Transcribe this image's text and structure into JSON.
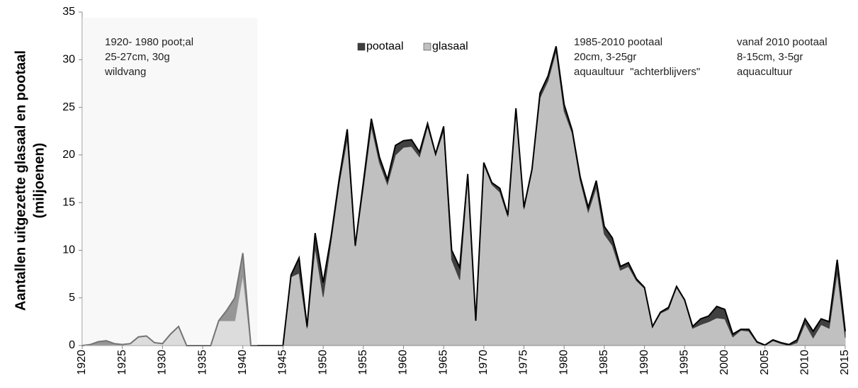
{
  "chart_data": {
    "type": "stacked-area",
    "ylabel": [
      "Aantallen uitgezette glasaal en pootaal",
      "(miljoenen)"
    ],
    "x": [
      1920,
      1921,
      1922,
      1923,
      1924,
      1925,
      1926,
      1927,
      1928,
      1929,
      1930,
      1931,
      1932,
      1933,
      1934,
      1935,
      1936,
      1937,
      1938,
      1939,
      1940,
      1941,
      1942,
      1943,
      1944,
      1945,
      1946,
      1947,
      1948,
      1949,
      1950,
      1951,
      1952,
      1953,
      1954,
      1955,
      1956,
      1957,
      1958,
      1959,
      1960,
      1961,
      1962,
      1963,
      1964,
      1965,
      1966,
      1967,
      1968,
      1969,
      1970,
      1971,
      1972,
      1973,
      1974,
      1975,
      1976,
      1977,
      1978,
      1979,
      1980,
      1981,
      1982,
      1983,
      1984,
      1985,
      1986,
      1987,
      1988,
      1989,
      1990,
      1991,
      1992,
      1993,
      1994,
      1995,
      1996,
      1997,
      1998,
      1999,
      2000,
      2001,
      2002,
      2003,
      2004,
      2005,
      2006,
      2007,
      2008,
      2009,
      2010,
      2011,
      2012,
      2013,
      2014,
      2015
    ],
    "series": [
      {
        "name": "glasaal",
        "color": "#c0c0c0",
        "values": [
          0,
          0,
          0,
          0,
          0,
          0.1,
          0.2,
          0.9,
          1.0,
          0.3,
          0.2,
          1.2,
          2.0,
          0,
          0,
          0,
          0,
          2.6,
          2.6,
          2.6,
          7.4,
          0,
          0,
          0,
          0,
          0,
          7.2,
          7.6,
          1.8,
          10.3,
          5.1,
          11,
          17,
          21.7,
          10.4,
          16.5,
          23,
          19.2,
          16.9,
          20,
          20.8,
          20.9,
          19.8,
          23,
          20,
          22.5,
          9,
          6.9,
          17.8,
          2.6,
          19,
          16.9,
          16.1,
          13.5,
          24.7,
          14.3,
          18.3,
          26,
          27.8,
          30.9,
          24.6,
          22.3,
          17.3,
          14,
          16.6,
          11.7,
          10.5,
          7.9,
          8.3,
          6.8,
          6,
          1.9,
          3.4,
          3.8,
          6.1,
          4.7,
          1.8,
          2.2,
          2.5,
          2.9,
          2.8,
          0.9,
          1.6,
          1.5,
          0.3,
          0,
          0.5,
          0.2,
          0,
          0.3,
          2.3,
          0.8,
          2.2,
          1.8,
          7.7,
          0.8
        ]
      },
      {
        "name": "pootaal",
        "color": "#404040",
        "values": [
          0,
          0.1,
          0.4,
          0.5,
          0.2,
          0,
          0,
          0,
          0,
          0,
          0,
          0,
          0,
          0,
          0,
          0,
          0,
          0,
          1.1,
          2.4,
          2.3,
          0,
          0,
          0,
          0,
          0,
          0.2,
          1.6,
          0.2,
          1.5,
          1.5,
          0.5,
          0.5,
          1.0,
          0.1,
          0.6,
          0.8,
          0.6,
          0.5,
          1.0,
          0.7,
          0.7,
          0.5,
          0.3,
          0.1,
          0.5,
          1.0,
          1.3,
          0.2,
          0,
          0.2,
          0.2,
          0.4,
          0.2,
          0.2,
          0.2,
          0.2,
          0.5,
          0.5,
          0.5,
          0.7,
          0.3,
          0.4,
          0.5,
          0.7,
          0.8,
          0.8,
          0.4,
          0.4,
          0.2,
          0.1,
          0.1,
          0.1,
          0.2,
          0.1,
          0.1,
          0.2,
          0.6,
          0.6,
          1.2,
          1.0,
          0.3,
          0.1,
          0.2,
          0.1,
          0.05,
          0.1,
          0.1,
          0.1,
          0.3,
          0.5,
          0.7,
          0.6,
          0.7,
          1.3,
          0.7
        ]
      }
    ],
    "xlim": [
      1920,
      2015
    ],
    "xticks": [
      1920,
      1925,
      1930,
      1935,
      1940,
      1945,
      1950,
      1955,
      1960,
      1965,
      1970,
      1975,
      1980,
      1985,
      1990,
      1995,
      2000,
      2005,
      2010,
      2015
    ],
    "ylim": [
      0,
      35
    ],
    "yticks": [
      0,
      5,
      10,
      15,
      20,
      25,
      30,
      35
    ],
    "highlight_xlim": [
      1920,
      1941.8
    ],
    "legend_order": [
      1,
      0
    ],
    "annotations": [
      {
        "lines": [
          "1920- 1980 poot;al",
          "25-27cm, 30g",
          "wildvang"
        ]
      },
      {
        "lines": [
          "1985-2010 pootaal",
          "20cm, 3-25gr",
          "aquaultuur  \"achterblijvers\""
        ]
      },
      {
        "lines": [
          "vanaf 2010 pootaal",
          "8-15cm, 3-5gr",
          "aquacultuur"
        ]
      }
    ]
  }
}
